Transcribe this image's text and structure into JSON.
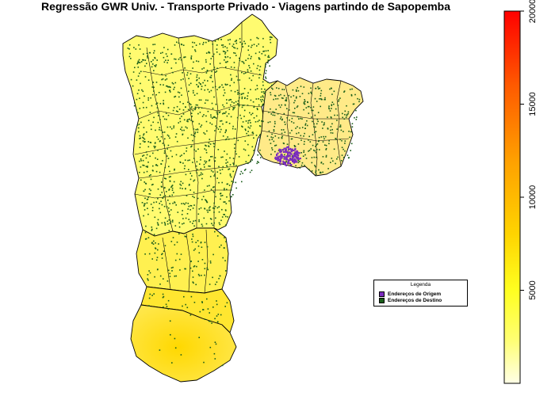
{
  "title": "Regressão GWR Univ. - Transporte Privado - Viagens partindo de Sapopemba",
  "legend": {
    "title": "Legenda",
    "items": [
      {
        "label": "Endereços de Origem",
        "color": "#7b2cbf"
      },
      {
        "label": "Endereços de Destino",
        "color": "#1a5e1a"
      }
    ]
  },
  "colorbar": {
    "min": 0,
    "max": 20000,
    "ticks": [
      {
        "value": 5000,
        "label": "5000"
      },
      {
        "value": 10000,
        "label": "10000"
      },
      {
        "value": 15000,
        "label": "15000"
      },
      {
        "value": 20000,
        "label": "20000"
      }
    ],
    "colors": [
      "#ffffe0",
      "#ffff3c",
      "#ffd000",
      "#ff9800",
      "#ff5a00",
      "#ff0000"
    ]
  },
  "map_colors": {
    "north": "#fffb80",
    "center": "#fff860",
    "east": "#ffe98a",
    "south": "#ffe84a",
    "far_south": "#ffdc10",
    "origin": "#7b2cbf",
    "destination": "#1a5e1a"
  }
}
